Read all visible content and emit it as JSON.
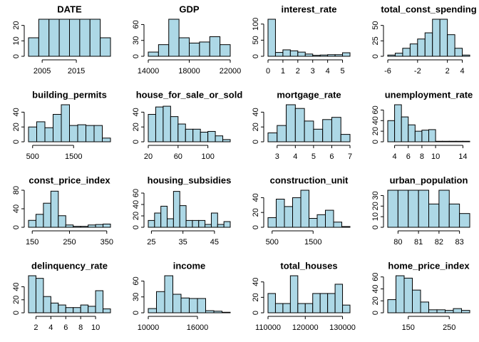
{
  "chart_data": [
    {
      "type": "histogram",
      "title": "DATE",
      "color": "#add8e6",
      "bins": [
        2001,
        2004,
        2007,
        2010,
        2013,
        2016,
        2019,
        2022,
        2025
      ],
      "values": [
        12,
        24,
        24,
        24,
        24,
        24,
        24,
        12
      ],
      "xlim": [
        2001,
        2025
      ],
      "xticks": [
        2005,
        2015
      ],
      "ylim": [
        0,
        24
      ],
      "yticks": [
        0,
        10,
        20
      ]
    },
    {
      "type": "histogram",
      "title": "GDP",
      "color": "#add8e6",
      "bins": [
        14000,
        15000,
        16000,
        17000,
        18000,
        19000,
        20000,
        21000,
        22000
      ],
      "values": [
        8,
        22,
        70,
        35,
        25,
        27,
        37,
        22
      ],
      "xlim": [
        14000,
        22000
      ],
      "xticks": [
        14000,
        18000,
        22000
      ],
      "ylim": [
        0,
        70
      ],
      "yticks": [
        0,
        30,
        60
      ]
    },
    {
      "type": "histogram",
      "title": "interest_rate",
      "color": "#add8e6",
      "bins": [
        0,
        0.5,
        1,
        1.5,
        2,
        2.5,
        3,
        3.5,
        4,
        4.5,
        5,
        5.5
      ],
      "values": [
        115,
        12,
        20,
        17,
        13,
        7,
        3,
        4,
        5,
        5,
        11
      ],
      "xlim": [
        0,
        5.5
      ],
      "xticks": [
        0,
        1,
        2,
        3,
        4,
        5
      ],
      "ylim": [
        0,
        115
      ],
      "yticks": [
        0,
        50,
        100
      ]
    },
    {
      "type": "histogram",
      "title": "total_const_spending",
      "color": "#add8e6",
      "bins": [
        -6,
        -5,
        -4,
        -3,
        -2,
        -1,
        0,
        1,
        2,
        3,
        4,
        5
      ],
      "values": [
        2,
        5,
        13,
        20,
        28,
        38,
        60,
        60,
        35,
        13,
        2
      ],
      "xlim": [
        -6,
        5
      ],
      "xticks": [
        -6,
        -2,
        2,
        4
      ],
      "ylim": [
        0,
        60
      ],
      "yticks": [
        0,
        25,
        50
      ]
    },
    {
      "type": "histogram",
      "title": "building_permits",
      "color": "#add8e6",
      "bins": [
        400,
        600,
        800,
        1000,
        1200,
        1400,
        1600,
        1800,
        2000,
        2200,
        2400
      ],
      "values": [
        20,
        27,
        19,
        37,
        50,
        22,
        23,
        22,
        22,
        5
      ],
      "xlim": [
        400,
        2400
      ],
      "xticks": [
        500,
        1500
      ],
      "ylim": [
        0,
        50
      ],
      "yticks": [
        0,
        20,
        40
      ]
    },
    {
      "type": "histogram",
      "title": "house_for_sale_or_sold",
      "color": "#add8e6",
      "bins": [
        20,
        30,
        40,
        50,
        60,
        70,
        80,
        90,
        100,
        110,
        120,
        130
      ],
      "values": [
        37,
        47,
        48,
        34,
        24,
        17,
        17,
        13,
        14,
        8,
        3
      ],
      "xlim": [
        20,
        130
      ],
      "xticks": [
        20,
        60,
        100
      ],
      "ylim": [
        0,
        50
      ],
      "yticks": [
        0,
        20,
        40
      ]
    },
    {
      "type": "histogram",
      "title": "mortgage_rate",
      "color": "#add8e6",
      "bins": [
        2.5,
        3,
        3.5,
        4,
        4.5,
        5,
        5.5,
        6,
        6.5,
        7
      ],
      "values": [
        12,
        22,
        50,
        45,
        28,
        17,
        30,
        33,
        10
      ],
      "xlim": [
        2.5,
        7
      ],
      "xticks": [
        3,
        4,
        5,
        6,
        7
      ],
      "ylim": [
        0,
        50
      ],
      "yticks": [
        0,
        20,
        40
      ]
    },
    {
      "type": "histogram",
      "title": "unemployment_rate",
      "color": "#add8e6",
      "bins": [
        3,
        4,
        5,
        6,
        7,
        8,
        9,
        10,
        11,
        12,
        13,
        14,
        15
      ],
      "values": [
        40,
        70,
        47,
        32,
        20,
        22,
        23,
        1,
        1,
        1,
        1,
        1
      ],
      "xlim": [
        3,
        15
      ],
      "xticks": [
        4,
        6,
        8,
        10,
        14
      ],
      "ylim": [
        0,
        70
      ],
      "yticks": [
        0,
        20,
        40,
        60
      ]
    },
    {
      "type": "histogram",
      "title": "const_price_index",
      "color": "#add8e6",
      "bins": [
        140,
        160,
        180,
        200,
        220,
        240,
        260,
        280,
        300,
        320,
        340,
        360
      ],
      "values": [
        15,
        28,
        52,
        78,
        25,
        5,
        2,
        2,
        5,
        6,
        7
      ],
      "xlim": [
        140,
        360
      ],
      "xticks": [
        150,
        250,
        350
      ],
      "ylim": [
        0,
        80
      ],
      "yticks": [
        0,
        40,
        80
      ]
    },
    {
      "type": "histogram",
      "title": "housing_subsidies",
      "color": "#add8e6",
      "bins": [
        24,
        26,
        28,
        30,
        32,
        34,
        36,
        38,
        40,
        42,
        44,
        46,
        48,
        50
      ],
      "values": [
        12,
        25,
        37,
        15,
        63,
        38,
        12,
        12,
        12,
        5,
        25,
        5,
        10
      ],
      "xlim": [
        24,
        50
      ],
      "xticks": [
        25,
        35,
        45
      ],
      "ylim": [
        0,
        65
      ],
      "yticks": [
        0,
        20,
        40,
        60
      ]
    },
    {
      "type": "histogram",
      "title": "construction_unit",
      "color": "#add8e6",
      "bins": [
        400,
        600,
        800,
        1000,
        1200,
        1400,
        1600,
        1800,
        2000,
        2200,
        2400
      ],
      "values": [
        13,
        38,
        28,
        40,
        50,
        12,
        17,
        23,
        7,
        1
      ],
      "xlim": [
        400,
        2400
      ],
      "xticks": [
        500,
        1500
      ],
      "ylim": [
        0,
        50
      ],
      "yticks": [
        0,
        20,
        40
      ]
    },
    {
      "type": "histogram",
      "title": "urban_population",
      "color": "#add8e6",
      "bins": [
        79.5,
        80,
        80.5,
        81,
        81.5,
        82,
        82.5,
        83,
        83.5
      ],
      "values": [
        35,
        35,
        35,
        35,
        22,
        35,
        22,
        13
      ],
      "xlim": [
        79.5,
        83.5
      ],
      "xticks": [
        80,
        81,
        82,
        83
      ],
      "ylim": [
        0,
        35
      ],
      "yticks": [
        0,
        10,
        20,
        30
      ]
    },
    {
      "type": "histogram",
      "title": "delinquency_rate",
      "color": "#add8e6",
      "bins": [
        1,
        2,
        3,
        4,
        5,
        6,
        7,
        8,
        9,
        10,
        11,
        12
      ],
      "values": [
        57,
        53,
        25,
        15,
        12,
        8,
        8,
        12,
        10,
        34,
        6
      ],
      "xlim": [
        1,
        12
      ],
      "xticks": [
        2,
        4,
        6,
        8,
        10
      ],
      "ylim": [
        0,
        57
      ],
      "yticks": [
        0,
        20,
        40
      ]
    },
    {
      "type": "histogram",
      "title": "income",
      "color": "#add8e6",
      "bins": [
        10000,
        11000,
        12000,
        13000,
        14000,
        15000,
        16000,
        17000,
        18000,
        19000,
        20000
      ],
      "values": [
        8,
        40,
        70,
        35,
        28,
        27,
        27,
        4,
        3,
        1
      ],
      "xlim": [
        10000,
        20000
      ],
      "xticks": [
        10000,
        16000
      ],
      "ylim": [
        0,
        70
      ],
      "yticks": [
        0,
        30,
        60
      ]
    },
    {
      "type": "histogram",
      "title": "total_houses",
      "color": "#add8e6",
      "bins": [
        110000,
        112000,
        114000,
        116000,
        118000,
        120000,
        122000,
        124000,
        126000,
        128000,
        130000,
        132000
      ],
      "values": [
        25,
        12,
        12,
        48,
        12,
        12,
        25,
        25,
        25,
        37,
        10
      ],
      "xlim": [
        110000,
        132000
      ],
      "xticks": [
        110000,
        120000,
        130000
      ],
      "ylim": [
        0,
        48
      ],
      "yticks": [
        0,
        20,
        40
      ]
    },
    {
      "type": "histogram",
      "title": "home_price_index",
      "color": "#add8e6",
      "bins": [
        100,
        120,
        140,
        160,
        180,
        200,
        220,
        240,
        260,
        280,
        300
      ],
      "values": [
        22,
        62,
        58,
        38,
        18,
        5,
        5,
        4,
        7,
        4
      ],
      "xlim": [
        100,
        300
      ],
      "xticks": [
        150,
        250
      ],
      "ylim": [
        0,
        62
      ],
      "yticks": [
        0,
        20,
        40,
        60
      ]
    }
  ]
}
